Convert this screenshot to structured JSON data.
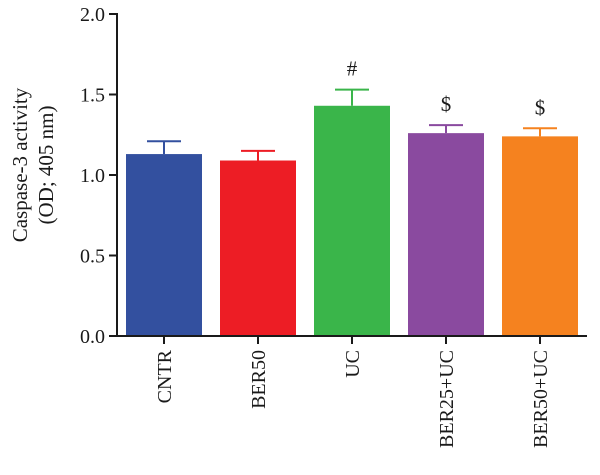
{
  "chart_data": {
    "type": "bar",
    "title": "",
    "xlabel": "",
    "ylabel_lines": [
      "Caspase-3 activity",
      "(OD; 405 nm)"
    ],
    "ylim": [
      0,
      2.0
    ],
    "yticks": [
      "0.0",
      "0.5",
      "1.0",
      "1.5",
      "2.0"
    ],
    "categories": [
      "CNTR",
      "BER50",
      "UC",
      "BER25+UC",
      "BER50+UC"
    ],
    "values": [
      1.13,
      1.09,
      1.43,
      1.26,
      1.24
    ],
    "errors": [
      0.08,
      0.06,
      0.1,
      0.05,
      0.05
    ],
    "annotations": [
      "",
      "",
      "#",
      "$",
      "$"
    ],
    "colors": [
      "#33509f",
      "#ed1d25",
      "#3ab54a",
      "#8a4a9f",
      "#f5821f"
    ],
    "legend": "none",
    "grid": false
  }
}
